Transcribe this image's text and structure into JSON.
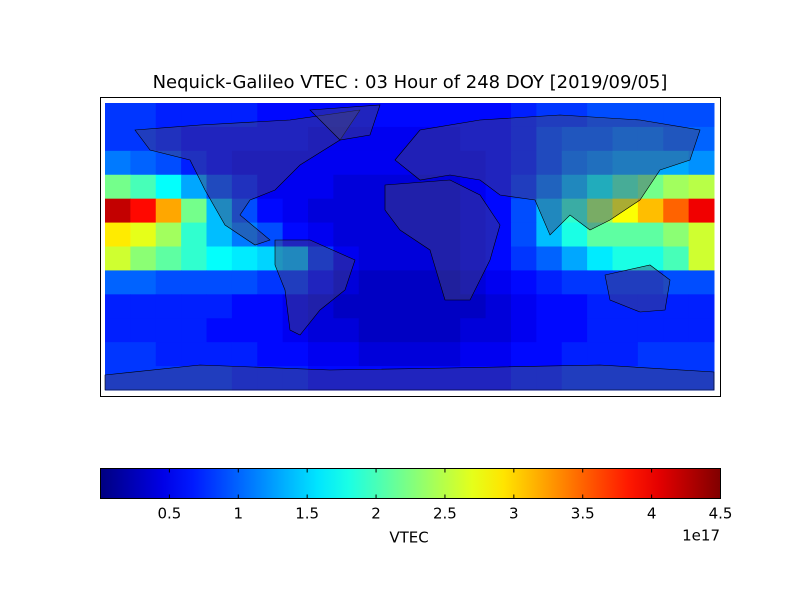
{
  "chart_data": {
    "type": "heatmap",
    "title": "Nequick-Galileo VTEC : 03 Hour of 248 DOY [2019/09/05]",
    "colormap": "jet",
    "colorbar_label": "VTEC",
    "colorbar_offset": "1e17",
    "clim": [
      0.0,
      4.5
    ],
    "colorbar_ticks": [
      0.5,
      1.0,
      1.5,
      2.0,
      2.5,
      3.0,
      3.5,
      4.0,
      4.5
    ],
    "z": [
      [
        0.8,
        0.8,
        0.7,
        0.7,
        0.7,
        0.7,
        0.6,
        0.6,
        0.6,
        0.6,
        0.6,
        0.6,
        0.6,
        0.6,
        0.6,
        0.6,
        0.7,
        0.8,
        0.8,
        0.9,
        0.9,
        0.9,
        0.9,
        0.9
      ],
      [
        0.8,
        0.8,
        0.7,
        0.6,
        0.6,
        0.6,
        0.6,
        0.6,
        0.5,
        0.5,
        0.5,
        0.5,
        0.5,
        0.5,
        0.6,
        0.6,
        0.7,
        0.9,
        1.0,
        1.0,
        1.1,
        1.1,
        1.0,
        1.0
      ],
      [
        1.1,
        1.0,
        0.9,
        0.7,
        0.6,
        0.5,
        0.5,
        0.5,
        0.5,
        0.5,
        0.5,
        0.5,
        0.5,
        0.5,
        0.5,
        0.6,
        0.7,
        0.9,
        1.1,
        1.2,
        1.3,
        1.3,
        1.3,
        1.2
      ],
      [
        2.2,
        2.0,
        1.7,
        1.3,
        0.9,
        0.7,
        0.5,
        0.5,
        0.5,
        0.4,
        0.4,
        0.4,
        0.4,
        0.4,
        0.5,
        0.6,
        0.8,
        1.1,
        1.4,
        1.7,
        2.0,
        2.2,
        2.4,
        2.5
      ],
      [
        4.2,
        3.9,
        3.2,
        2.2,
        1.4,
        0.9,
        0.6,
        0.5,
        0.4,
        0.4,
        0.4,
        0.4,
        0.4,
        0.4,
        0.5,
        0.6,
        0.9,
        1.4,
        1.9,
        2.4,
        2.8,
        3.1,
        3.5,
        4.0
      ],
      [
        2.9,
        2.7,
        2.4,
        1.9,
        1.4,
        1.1,
        0.9,
        0.6,
        0.5,
        0.4,
        0.4,
        0.4,
        0.4,
        0.4,
        0.5,
        0.6,
        0.9,
        1.4,
        1.8,
        2.1,
        2.1,
        2.1,
        2.3,
        2.6
      ],
      [
        2.6,
        2.3,
        2.1,
        1.9,
        1.7,
        1.6,
        1.5,
        1.4,
        0.8,
        0.5,
        0.4,
        0.4,
        0.4,
        0.4,
        0.5,
        0.6,
        0.8,
        1.0,
        1.3,
        1.6,
        1.8,
        1.8,
        2.0,
        2.6
      ],
      [
        1.0,
        1.0,
        0.9,
        0.9,
        0.9,
        0.9,
        0.8,
        0.8,
        0.6,
        0.4,
        0.3,
        0.3,
        0.3,
        0.3,
        0.4,
        0.5,
        0.6,
        0.7,
        0.8,
        0.8,
        0.8,
        0.8,
        0.9,
        0.9
      ],
      [
        0.7,
        0.7,
        0.7,
        0.7,
        0.7,
        0.6,
        0.6,
        0.5,
        0.4,
        0.3,
        0.3,
        0.3,
        0.3,
        0.3,
        0.3,
        0.4,
        0.5,
        0.6,
        0.6,
        0.7,
        0.7,
        0.7,
        0.7,
        0.7
      ],
      [
        0.7,
        0.7,
        0.7,
        0.7,
        0.6,
        0.6,
        0.6,
        0.5,
        0.4,
        0.4,
        0.3,
        0.3,
        0.3,
        0.3,
        0.4,
        0.4,
        0.5,
        0.6,
        0.6,
        0.7,
        0.7,
        0.7,
        0.7,
        0.7
      ],
      [
        0.8,
        0.8,
        0.7,
        0.7,
        0.7,
        0.7,
        0.6,
        0.6,
        0.5,
        0.5,
        0.4,
        0.4,
        0.4,
        0.4,
        0.5,
        0.5,
        0.6,
        0.6,
        0.7,
        0.7,
        0.7,
        0.8,
        0.8,
        0.8
      ],
      [
        0.8,
        0.8,
        0.8,
        0.8,
        0.8,
        0.7,
        0.7,
        0.7,
        0.6,
        0.6,
        0.6,
        0.6,
        0.6,
        0.6,
        0.6,
        0.6,
        0.7,
        0.7,
        0.8,
        0.8,
        0.8,
        0.8,
        0.8,
        0.8
      ]
    ]
  }
}
